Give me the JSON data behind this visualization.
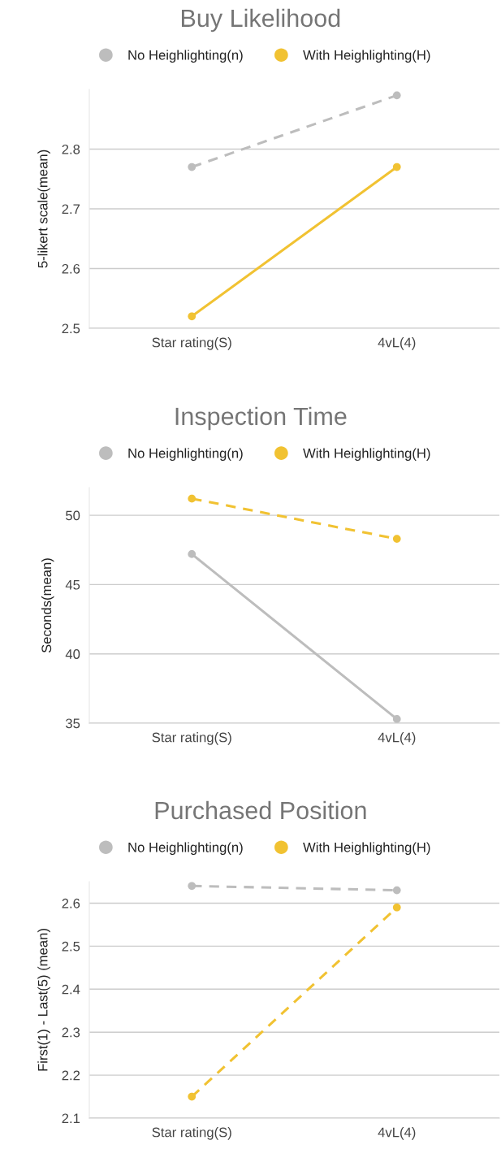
{
  "chart_data": [
    {
      "type": "line",
      "title": "Buy Likelihood",
      "ylabel": "5-likert scale(mean)",
      "categories": [
        "Star rating(S)",
        "4vL(4)"
      ],
      "series": [
        {
          "name": "No Heighlighting(n)",
          "color": "#bdbdbd",
          "values": [
            2.77,
            2.89
          ],
          "line_style": "dashed"
        },
        {
          "name": "With Heighlighting(H)",
          "color": "#f1c232",
          "values": [
            2.52,
            2.77
          ],
          "line_style": "solid"
        }
      ],
      "ylim": [
        2.5,
        2.9
      ],
      "yticks": [
        2.5,
        2.6,
        2.7,
        2.8
      ],
      "grid": "y",
      "legend": "top",
      "marker": "circle"
    },
    {
      "type": "line",
      "title": "Inspection Time",
      "ylabel": "Seconds(mean)",
      "categories": [
        "Star rating(S)",
        "4vL(4)"
      ],
      "series": [
        {
          "name": "No Heighlighting(n)",
          "color": "#bdbdbd",
          "values": [
            47.2,
            35.3
          ],
          "line_style": "solid"
        },
        {
          "name": "With Heighlighting(H)",
          "color": "#f1c232",
          "values": [
            51.2,
            48.3
          ],
          "line_style": "dashed"
        }
      ],
      "ylim": [
        35,
        52
      ],
      "yticks": [
        35,
        40,
        45,
        50
      ],
      "grid": "y",
      "legend": "top",
      "marker": "circle"
    },
    {
      "type": "line",
      "title": "Purchased Position",
      "ylabel": "First(1) - Last(5) (mean)",
      "categories": [
        "Star rating(S)",
        "4vL(4)"
      ],
      "series": [
        {
          "name": "No Heighlighting(n)",
          "color": "#bdbdbd",
          "values": [
            2.64,
            2.63
          ],
          "line_style": "dashed"
        },
        {
          "name": "With Heighlighting(H)",
          "color": "#f1c232",
          "values": [
            2.15,
            2.59
          ],
          "line_style": "dashed"
        }
      ],
      "ylim": [
        2.1,
        2.65
      ],
      "yticks": [
        2.1,
        2.2,
        2.3,
        2.4,
        2.5,
        2.6
      ],
      "grid": "y",
      "legend": "top",
      "marker": "circle"
    }
  ]
}
